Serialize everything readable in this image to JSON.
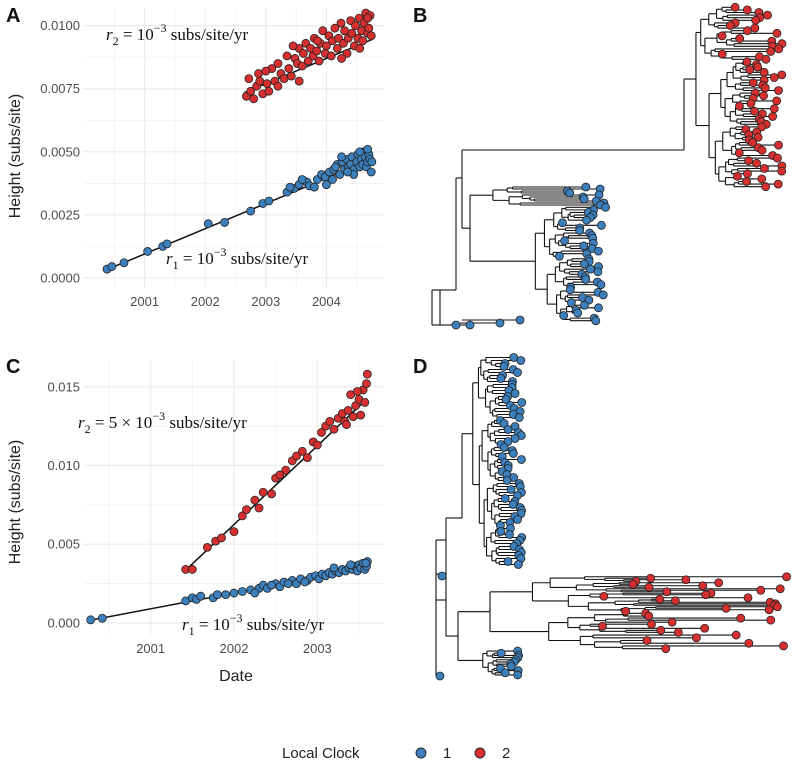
{
  "colors": {
    "clock1": "#3b7fbd",
    "clock2": "#d62f2f",
    "grid": "#ececec"
  },
  "legend": {
    "title": "Local Clock",
    "items": [
      "1",
      "2"
    ]
  },
  "chart_data": [
    {
      "panel": "A",
      "type": "scatter",
      "ylabel": "Height (subs/site)",
      "xlabel": "",
      "xlim": [
        2000.0,
        2004.95
      ],
      "ylim": [
        -0.0004,
        0.0107
      ],
      "xticks": [
        2001,
        2002,
        2003,
        2004
      ],
      "yticks": [
        0.0,
        0.0025,
        0.005,
        0.0075,
        0.01
      ],
      "ytick_labels": [
        "0.0000",
        "0.0025",
        "0.0050",
        "0.0075",
        "0.0100"
      ],
      "series": [
        {
          "name": "1",
          "rate_label": "10⁻³ subs/site/yr",
          "annotation": {
            "r": "r",
            "sub": "1",
            "text": " = 10",
            "sup": "−3",
            "units": " subs/site/yr"
          },
          "line": {
            "slope": 0.001,
            "intercept_year": 2000.05,
            "x0": 2000.35,
            "x1": 2004.75
          },
          "points": [
            [
              2000.38,
              0.00035
            ],
            [
              2000.46,
              0.00045
            ],
            [
              2000.66,
              0.0006
            ],
            [
              2001.05,
              0.00105
            ],
            [
              2001.3,
              0.00125
            ],
            [
              2001.37,
              0.00135
            ],
            [
              2002.05,
              0.00215
            ],
            [
              2002.32,
              0.0022
            ],
            [
              2002.75,
              0.00265
            ],
            [
              2002.95,
              0.00295
            ],
            [
              2003.05,
              0.00305
            ],
            [
              2003.35,
              0.0034
            ],
            [
              2003.47,
              0.00355
            ],
            [
              2003.55,
              0.0037
            ],
            [
              2003.68,
              0.0038
            ],
            [
              2003.72,
              0.00365
            ],
            [
              2003.85,
              0.0039
            ],
            [
              2003.92,
              0.0041
            ],
            [
              2003.98,
              0.004
            ],
            [
              2004.05,
              0.0042
            ],
            [
              2004.1,
              0.0039
            ],
            [
              2004.12,
              0.0043
            ],
            [
              2004.18,
              0.0045
            ],
            [
              2004.22,
              0.0041
            ],
            [
              2004.26,
              0.0046
            ],
            [
              2004.3,
              0.0043
            ],
            [
              2004.34,
              0.0047
            ],
            [
              2004.36,
              0.0044
            ],
            [
              2004.4,
              0.0045
            ],
            [
              2004.42,
              0.0048
            ],
            [
              2004.46,
              0.0043
            ],
            [
              2004.5,
              0.0046
            ],
            [
              2004.52,
              0.0049
            ],
            [
              2004.55,
              0.0044
            ],
            [
              2004.58,
              0.0047
            ],
            [
              2004.6,
              0.0045
            ],
            [
              2004.62,
              0.005
            ],
            [
              2004.64,
              0.0048
            ],
            [
              2004.66,
              0.0044
            ],
            [
              2004.68,
              0.0046
            ],
            [
              2004.7,
              0.0049
            ],
            [
              2004.72,
              0.0047
            ],
            [
              2004.74,
              0.0042
            ],
            [
              2004.75,
              0.0046
            ],
            [
              2003.8,
              0.0036
            ],
            [
              2003.6,
              0.0039
            ],
            [
              2003.4,
              0.0036
            ],
            [
              2004.15,
              0.0044
            ],
            [
              2004.0,
              0.0037
            ],
            [
              2004.25,
              0.0048
            ],
            [
              2004.45,
              0.0041
            ],
            [
              2004.55,
              0.005
            ],
            [
              2004.68,
              0.0051
            ],
            [
              2004.35,
              0.0042
            ]
          ]
        },
        {
          "name": "2",
          "rate_label": "10⁻³ subs/site/yr",
          "annotation": {
            "r": "r",
            "sub": "2",
            "text": " = 10",
            "sup": "−3",
            "units": " subs/site/yr"
          },
          "line": {
            "slope": 0.001,
            "intercept_year": 1995.3,
            "x0": 2002.65,
            "x1": 2004.75
          },
          "points": [
            [
              2002.68,
              0.0072
            ],
            [
              2002.72,
              0.0079
            ],
            [
              2002.75,
              0.0074
            ],
            [
              2002.8,
              0.0071
            ],
            [
              2002.85,
              0.0076
            ],
            [
              2002.88,
              0.0081
            ],
            [
              2002.95,
              0.0073
            ],
            [
              2003.02,
              0.0077
            ],
            [
              2003.05,
              0.0074
            ],
            [
              2003.1,
              0.0083
            ],
            [
              2003.15,
              0.0078
            ],
            [
              2003.2,
              0.0085
            ],
            [
              2003.25,
              0.0081
            ],
            [
              2003.3,
              0.0079
            ],
            [
              2003.35,
              0.0088
            ],
            [
              2003.38,
              0.0083
            ],
            [
              2003.42,
              0.008
            ],
            [
              2003.48,
              0.0087
            ],
            [
              2003.52,
              0.0085
            ],
            [
              2003.55,
              0.0091
            ],
            [
              2003.6,
              0.0084
            ],
            [
              2003.62,
              0.0089
            ],
            [
              2003.66,
              0.0093
            ],
            [
              2003.7,
              0.0086
            ],
            [
              2003.74,
              0.0091
            ],
            [
              2003.78,
              0.0088
            ],
            [
              2003.8,
              0.0095
            ],
            [
              2003.84,
              0.009
            ],
            [
              2003.88,
              0.0086
            ],
            [
              2003.9,
              0.0093
            ],
            [
              2003.94,
              0.0098
            ],
            [
              2003.98,
              0.0089
            ],
            [
              2004.0,
              0.0092
            ],
            [
              2004.04,
              0.0096
            ],
            [
              2004.08,
              0.0088
            ],
            [
              2004.1,
              0.0094
            ],
            [
              2004.14,
              0.0099
            ],
            [
              2004.18,
              0.0091
            ],
            [
              2004.2,
              0.0095
            ],
            [
              2004.24,
              0.0101
            ],
            [
              2004.28,
              0.0093
            ],
            [
              2004.3,
              0.0098
            ],
            [
              2004.34,
              0.0089
            ],
            [
              2004.36,
              0.0095
            ],
            [
              2004.4,
              0.0102
            ],
            [
              2004.42,
              0.0097
            ],
            [
              2004.46,
              0.0092
            ],
            [
              2004.48,
              0.01
            ],
            [
              2004.52,
              0.0095
            ],
            [
              2004.54,
              0.0103
            ],
            [
              2004.58,
              0.0098
            ],
            [
              2004.6,
              0.0094
            ],
            [
              2004.62,
              0.0101
            ],
            [
              2004.65,
              0.0105
            ],
            [
              2004.68,
              0.0097
            ],
            [
              2004.7,
              0.0099
            ],
            [
              2004.72,
              0.0104
            ],
            [
              2004.74,
              0.0096
            ],
            [
              2003.45,
              0.0092
            ],
            [
              2003.2,
              0.0076
            ],
            [
              2003.0,
              0.0082
            ],
            [
              2002.9,
              0.0078
            ],
            [
              2003.55,
              0.0078
            ],
            [
              2003.85,
              0.0094
            ],
            [
              2004.25,
              0.0087
            ],
            [
              2004.55,
              0.0091
            ],
            [
              2004.68,
              0.0103
            ]
          ]
        }
      ]
    },
    {
      "panel": "C",
      "type": "scatter",
      "ylabel": "Height (subs/site)",
      "xlabel": "Date",
      "xlim": [
        2000.2,
        2003.8
      ],
      "ylim": [
        -0.0007,
        0.0167
      ],
      "xticks": [
        2001,
        2002,
        2003
      ],
      "yticks": [
        0.0,
        0.005,
        0.01,
        0.015
      ],
      "ytick_labels": [
        "0.000",
        "0.005",
        "0.010",
        "0.015"
      ],
      "series": [
        {
          "name": "1",
          "rate_label": "10⁻³ subs/site/yr",
          "annotation": {
            "r": "r",
            "sub": "1",
            "text": " = 10",
            "sup": "−3",
            "units": " subs/site/yr"
          },
          "line": {
            "slope": 0.001,
            "intercept_year": 2000.1,
            "x0": 2000.25,
            "x1": 2003.6
          },
          "points": [
            [
              2000.28,
              0.0002
            ],
            [
              2000.42,
              0.0003
            ],
            [
              2001.42,
              0.0014
            ],
            [
              2001.5,
              0.0016
            ],
            [
              2001.55,
              0.0015
            ],
            [
              2001.6,
              0.0017
            ],
            [
              2001.75,
              0.0016
            ],
            [
              2001.9,
              0.0018
            ],
            [
              2002.0,
              0.0019
            ],
            [
              2002.1,
              0.002
            ],
            [
              2002.2,
              0.0021
            ],
            [
              2002.3,
              0.0022
            ],
            [
              2002.35,
              0.0024
            ],
            [
              2002.4,
              0.0022
            ],
            [
              2002.5,
              0.0025
            ],
            [
              2002.55,
              0.0023
            ],
            [
              2002.6,
              0.0026
            ],
            [
              2002.7,
              0.0027
            ],
            [
              2002.75,
              0.0025
            ],
            [
              2002.8,
              0.0028
            ],
            [
              2002.88,
              0.0027
            ],
            [
              2002.92,
              0.0029
            ],
            [
              2002.98,
              0.003
            ],
            [
              2003.02,
              0.0028
            ],
            [
              2003.06,
              0.0031
            ],
            [
              2003.1,
              0.003
            ],
            [
              2003.14,
              0.0032
            ],
            [
              2003.18,
              0.0031
            ],
            [
              2003.22,
              0.0033
            ],
            [
              2003.26,
              0.0032
            ],
            [
              2003.3,
              0.0034
            ],
            [
              2003.34,
              0.0033
            ],
            [
              2003.38,
              0.0035
            ],
            [
              2003.42,
              0.0034
            ],
            [
              2003.45,
              0.0036
            ],
            [
              2003.48,
              0.0033
            ],
            [
              2003.5,
              0.0037
            ],
            [
              2003.52,
              0.0035
            ],
            [
              2003.55,
              0.0038
            ],
            [
              2003.57,
              0.0034
            ],
            [
              2003.59,
              0.0036
            ],
            [
              2003.6,
              0.0039
            ],
            [
              2002.45,
              0.0024
            ],
            [
              2002.65,
              0.0025
            ],
            [
              2002.85,
              0.0026
            ],
            [
              2003.2,
              0.0035
            ],
            [
              2003.4,
              0.0037
            ],
            [
              2003.58,
              0.0038
            ],
            [
              2001.8,
              0.0018
            ],
            [
              2002.25,
              0.0019
            ]
          ]
        },
        {
          "name": "2",
          "rate_label": "5×10⁻³ subs/site/yr",
          "annotation": {
            "r": "r",
            "sub": "2",
            "text": " = 5 × 10",
            "sup": "−3",
            "units": " subs/site/yr"
          },
          "line": {
            "slope": 0.005,
            "intercept_year": 2000.75,
            "x0": 2001.42,
            "x1": 2003.6
          },
          "points": [
            [
              2001.42,
              0.0034
            ],
            [
              2001.5,
              0.0034
            ],
            [
              2001.68,
              0.0048
            ],
            [
              2001.78,
              0.0052
            ],
            [
              2001.85,
              0.0054
            ],
            [
              2002.0,
              0.0058
            ],
            [
              2002.1,
              0.0068
            ],
            [
              2002.15,
              0.0072
            ],
            [
              2002.25,
              0.0078
            ],
            [
              2002.35,
              0.0083
            ],
            [
              2002.45,
              0.0082
            ],
            [
              2002.5,
              0.0092
            ],
            [
              2002.62,
              0.0097
            ],
            [
              2002.7,
              0.0103
            ],
            [
              2002.75,
              0.0106
            ],
            [
              2002.82,
              0.0109
            ],
            [
              2002.88,
              0.0105
            ],
            [
              2002.95,
              0.0115
            ],
            [
              2003.0,
              0.0113
            ],
            [
              2003.05,
              0.0121
            ],
            [
              2003.1,
              0.0125
            ],
            [
              2003.15,
              0.0128
            ],
            [
              2003.2,
              0.0123
            ],
            [
              2003.25,
              0.013
            ],
            [
              2003.3,
              0.0133
            ],
            [
              2003.33,
              0.0128
            ],
            [
              2003.37,
              0.0135
            ],
            [
              2003.4,
              0.0145
            ],
            [
              2003.43,
              0.0131
            ],
            [
              2003.46,
              0.0138
            ],
            [
              2003.5,
              0.0142
            ],
            [
              2003.52,
              0.0132
            ],
            [
              2003.55,
              0.0148
            ],
            [
              2003.57,
              0.014
            ],
            [
              2003.59,
              0.0152
            ],
            [
              2003.6,
              0.0158
            ],
            [
              2002.55,
              0.0094
            ],
            [
              2002.3,
              0.0073
            ],
            [
              2003.35,
              0.0126
            ],
            [
              2003.48,
              0.0147
            ]
          ]
        }
      ]
    },
    {
      "panel": "B",
      "type": "tree",
      "description_leaf_groups": [
        "1",
        "2"
      ]
    },
    {
      "panel": "D",
      "type": "tree",
      "description_leaf_groups": [
        "1",
        "2"
      ]
    }
  ],
  "panel_letters": {
    "A": "A",
    "B": "B",
    "C": "C",
    "D": "D"
  }
}
